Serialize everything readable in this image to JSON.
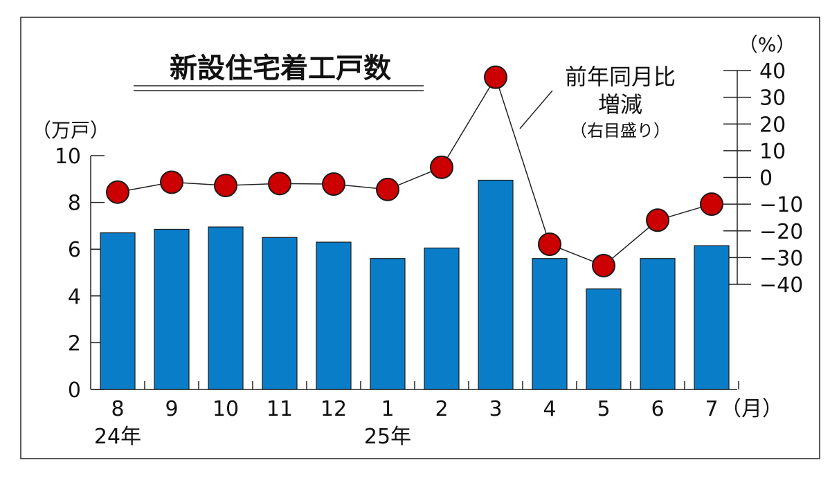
{
  "chart_data": {
    "type": "bar",
    "title": "新設住宅着工戸数",
    "categories": [
      "8",
      "9",
      "10",
      "11",
      "12",
      "1",
      "2",
      "3",
      "4",
      "5",
      "6",
      "7"
    ],
    "year_labels": [
      {
        "label": "24年",
        "category_index": 0
      },
      {
        "label": "25年",
        "category_index": 5
      }
    ],
    "x_unit": "（月）",
    "left_axis": {
      "unit": "（万戸）",
      "min": 0,
      "max": 10,
      "ticks": [
        "0",
        "2",
        "4",
        "6",
        "8",
        "10"
      ]
    },
    "right_axis": {
      "unit": "（%）",
      "min": -40,
      "max": 40,
      "ticks": [
        "−40",
        "−30",
        "−20",
        "−10",
        "0",
        "10",
        "20",
        "30",
        "40"
      ]
    },
    "series": [
      {
        "kind": "bar",
        "axis": "left",
        "color": "#0a7dc9",
        "values": [
          6.7,
          6.85,
          6.95,
          6.5,
          6.3,
          5.6,
          6.05,
          8.95,
          5.6,
          4.3,
          5.6,
          6.15
        ]
      },
      {
        "kind": "line",
        "axis": "right",
        "color": "#cc0000",
        "values": [
          -5.5,
          -1.8,
          -3.0,
          -2.3,
          -2.5,
          -4.5,
          3.8,
          37.5,
          -25.0,
          -33.0,
          -16.0,
          -10.0
        ]
      }
    ],
    "annotation": {
      "line1": "前年同月比",
      "line2": "増減",
      "line3": "（右目盛り）"
    },
    "grid": false
  }
}
